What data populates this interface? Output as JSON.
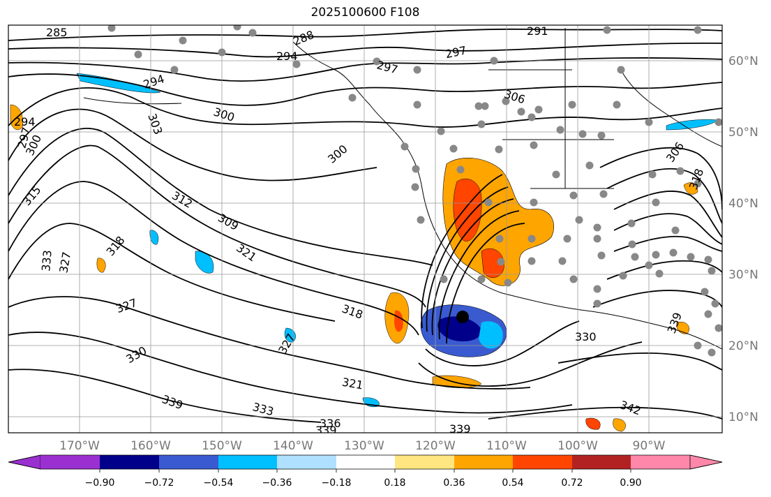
{
  "title": "2025100600 F108",
  "lon_labels": [
    "170°W",
    "160°W",
    "150°W",
    "140°W",
    "130°W",
    "120°W",
    "110°W",
    "100°W",
    "90°W"
  ],
  "lat_labels": [
    "60°N",
    "50°N",
    "40°N",
    "30°N",
    "20°N",
    "10°N"
  ],
  "colorbar": {
    "colors": [
      "#9b30d0",
      "#00008b",
      "#3a5bd0",
      "#00bfff",
      "#b0e0ff",
      "#ffffff",
      "#ffe680",
      "#ffa500",
      "#ff4500",
      "#b22222",
      "#ff88aa"
    ],
    "tick_labels": [
      "−0.90",
      "−0.72",
      "−0.54",
      "−0.36",
      "−0.18",
      "0.18",
      "0.36",
      "0.54",
      "0.72",
      "0.90"
    ]
  },
  "contour_labels": [
    "285",
    "288",
    "291",
    "294",
    "297",
    "297",
    "297",
    "300",
    "300",
    "300",
    "303",
    "306",
    "306",
    "309",
    "312",
    "315",
    "318",
    "318",
    "318",
    "321",
    "321",
    "327",
    "327",
    "327",
    "330",
    "330",
    "333",
    "333",
    "336",
    "339",
    "339",
    "339",
    "339",
    "342",
    "294",
    "294"
  ],
  "colors": {
    "grid": "#999999",
    "contour": "#000000",
    "station": "#888888"
  }
}
